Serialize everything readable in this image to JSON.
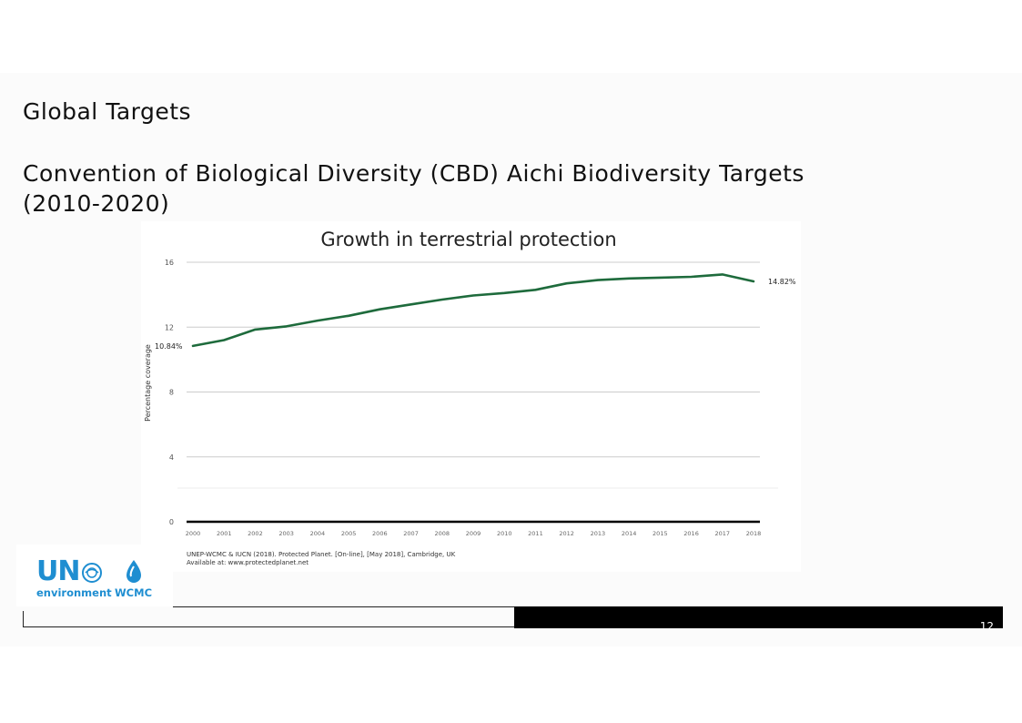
{
  "slide": {
    "heading": "Global Targets",
    "subheading": "Convention of Biological Diversity (CBD) Aichi Biodiversity Targets (2010-2020)",
    "page_number": "12"
  },
  "logo": {
    "un_text": "UN",
    "environment_text": "environment",
    "wcmc_text": "WCMC"
  },
  "colors": {
    "line": "#1e6b3c",
    "grid": "#cccccc",
    "accent_blue": "#1f8ed1"
  },
  "chart_data": {
    "type": "line",
    "title": "Growth in terrestrial protection",
    "ylabel": "Percentage coverage",
    "xlabel": "",
    "ylim": [
      0,
      16
    ],
    "yticks": [
      0,
      4,
      8,
      12,
      16
    ],
    "grid": true,
    "x": [
      "2000",
      "2001",
      "2002",
      "2003",
      "2004",
      "2005",
      "2006",
      "2007",
      "2008",
      "2009",
      "2010",
      "2011",
      "2012",
      "2013",
      "2014",
      "2015",
      "2016",
      "2017",
      "2018"
    ],
    "series": [
      {
        "values": [
          10.84,
          11.2,
          11.85,
          12.05,
          12.4,
          12.7,
          13.1,
          13.4,
          13.7,
          13.95,
          14.1,
          14.3,
          14.7,
          14.9,
          15.0,
          15.05,
          15.1,
          15.25,
          14.82
        ]
      }
    ],
    "annotations": {
      "start_label": "10.84%",
      "end_label": "14.82%"
    },
    "source_line1": "UNEP-WCMC & IUCN (2018). Protected Planet. [On-line], [May 2018], Cambridge, UK",
    "source_line2": "Available at: www.protectedplanet.net"
  }
}
